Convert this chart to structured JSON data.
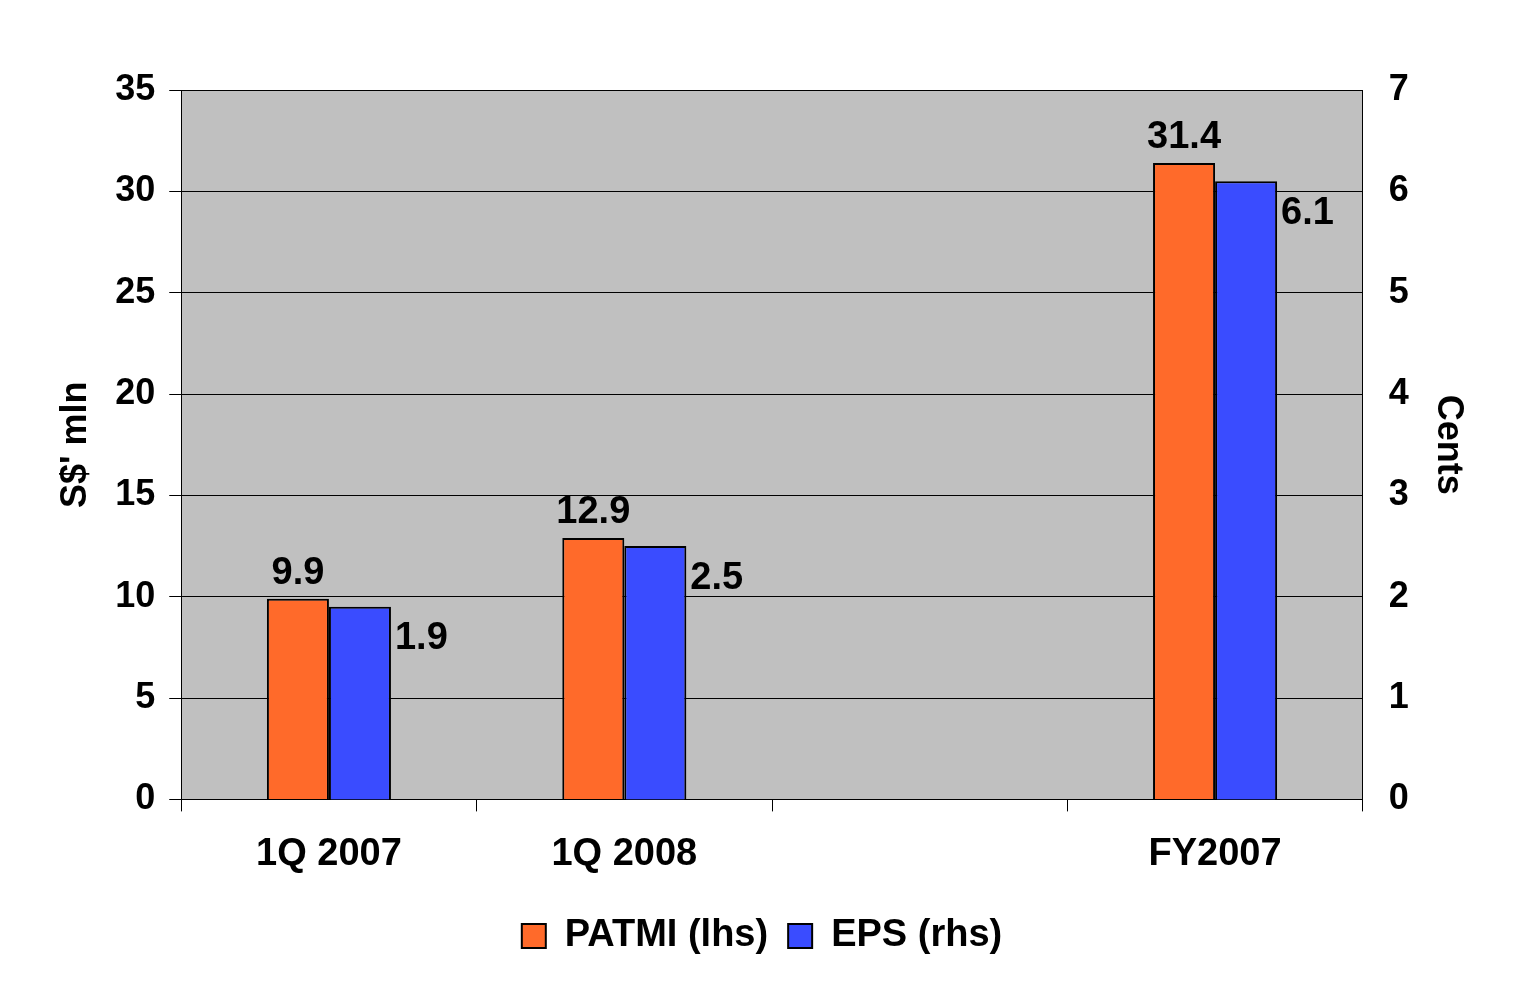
{
  "chart_data": {
    "type": "bar",
    "ylabel": "S$' mln",
    "y2label": "Cents",
    "categories": [
      "1Q 2007",
      "1Q 2008",
      null,
      "FY2007"
    ],
    "series": [
      {
        "name": "PATMI (lhs)",
        "color": "#ff6a2a",
        "values": [
          9.9,
          12.9,
          null,
          31.4
        ]
      },
      {
        "name": "EPS (rhs)",
        "color": "#3a4cff",
        "axis": "y2",
        "values": [
          1.9,
          2.5,
          null,
          6.1
        ]
      }
    ],
    "ylim": [
      0,
      35
    ],
    "yticks": [
      0,
      5,
      10,
      15,
      20,
      25,
      30,
      35
    ],
    "y2lim": [
      0,
      7
    ],
    "y2ticks": [
      0,
      1,
      2,
      3,
      4,
      5,
      6,
      7
    ],
    "grid": "y",
    "legend": "bottom",
    "data_labels": true
  }
}
